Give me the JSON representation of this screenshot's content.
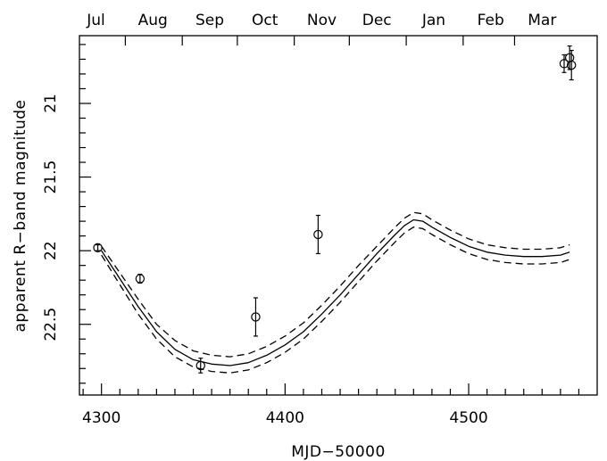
{
  "chart_data": {
    "type": "scatter",
    "xlabel": "MJD−50000",
    "ylabel": "apparent R−band magnitude",
    "xlim": [
      4288,
      4570
    ],
    "ylim": [
      22.98,
      20.54
    ],
    "y_inverted": true,
    "x_ticks": [
      4300,
      4400,
      4500
    ],
    "y_ticks": [
      21,
      21.5,
      22,
      22.5
    ],
    "y_tick_labels": [
      "21",
      "21.5",
      "22",
      "22.5"
    ],
    "top_axis_labels": [
      {
        "label": "Jul",
        "x": 4282
      },
      {
        "label": "Aug",
        "x": 4313
      },
      {
        "label": "Sep",
        "x": 4344
      },
      {
        "label": "Oct",
        "x": 4374
      },
      {
        "label": "Nov",
        "x": 4405
      },
      {
        "label": "Dec",
        "x": 4435
      },
      {
        "label": "Jan",
        "x": 4466
      },
      {
        "label": "Feb",
        "x": 4497
      },
      {
        "label": "Mar",
        "x": 4525
      }
    ],
    "series": [
      {
        "kind": "points_with_errorbars",
        "points": [
          {
            "x": 4298,
            "y": 21.98,
            "err": 0.02
          },
          {
            "x": 4321,
            "y": 22.19,
            "err": 0.03
          },
          {
            "x": 4354,
            "y": 22.78,
            "err": 0.05
          },
          {
            "x": 4384,
            "y": 22.45,
            "err": 0.13
          },
          {
            "x": 4418,
            "y": 21.89,
            "err": 0.13
          },
          {
            "x": 4552,
            "y": 20.73,
            "err": 0.06
          },
          {
            "x": 4555,
            "y": 20.69,
            "err": 0.08
          },
          {
            "x": 4556,
            "y": 20.74,
            "err": 0.1
          }
        ]
      },
      {
        "kind": "model_line",
        "style": "solid",
        "x": [
          4300,
          4310,
          4320,
          4330,
          4340,
          4350,
          4360,
          4370,
          4380,
          4390,
          4400,
          4410,
          4420,
          4430,
          4440,
          4450,
          4460,
          4465,
          4470,
          4475,
          4480,
          4490,
          4500,
          4510,
          4520,
          4530,
          4540,
          4550,
          4555
        ],
        "y": [
          22.0,
          22.19,
          22.38,
          22.55,
          22.67,
          22.74,
          22.77,
          22.78,
          22.76,
          22.71,
          22.64,
          22.55,
          22.43,
          22.3,
          22.16,
          22.02,
          21.89,
          21.83,
          21.79,
          21.8,
          21.84,
          21.91,
          21.97,
          22.01,
          22.03,
          22.04,
          22.04,
          22.03,
          22.01
        ]
      },
      {
        "kind": "model_line",
        "style": "dashed",
        "x": [
          4300,
          4310,
          4320,
          4330,
          4340,
          4350,
          4360,
          4370,
          4380,
          4390,
          4400,
          4410,
          4420,
          4430,
          4440,
          4450,
          4460,
          4465,
          4470,
          4475,
          4480,
          4490,
          4500,
          4510,
          4520,
          4530,
          4540,
          4550,
          4555
        ],
        "y": [
          21.97,
          22.15,
          22.33,
          22.5,
          22.61,
          22.68,
          22.71,
          22.72,
          22.7,
          22.65,
          22.58,
          22.49,
          22.37,
          22.24,
          22.1,
          21.97,
          21.84,
          21.78,
          21.74,
          21.75,
          21.79,
          21.86,
          21.92,
          21.96,
          21.98,
          21.99,
          21.99,
          21.98,
          21.96
        ]
      },
      {
        "kind": "model_line",
        "style": "dashed",
        "x": [
          4300,
          4310,
          4320,
          4330,
          4340,
          4350,
          4360,
          4370,
          4380,
          4390,
          4400,
          4410,
          4420,
          4430,
          4440,
          4450,
          4460,
          4465,
          4470,
          4475,
          4480,
          4490,
          4500,
          4510,
          4520,
          4530,
          4540,
          4550,
          4555
        ],
        "y": [
          22.03,
          22.23,
          22.43,
          22.6,
          22.72,
          22.79,
          22.82,
          22.83,
          22.81,
          22.76,
          22.69,
          22.6,
          22.48,
          22.35,
          22.21,
          22.07,
          21.94,
          21.88,
          21.84,
          21.85,
          21.89,
          21.96,
          22.02,
          22.06,
          22.08,
          22.09,
          22.09,
          22.08,
          22.06
        ]
      }
    ],
    "grid": false,
    "legend": "none"
  }
}
